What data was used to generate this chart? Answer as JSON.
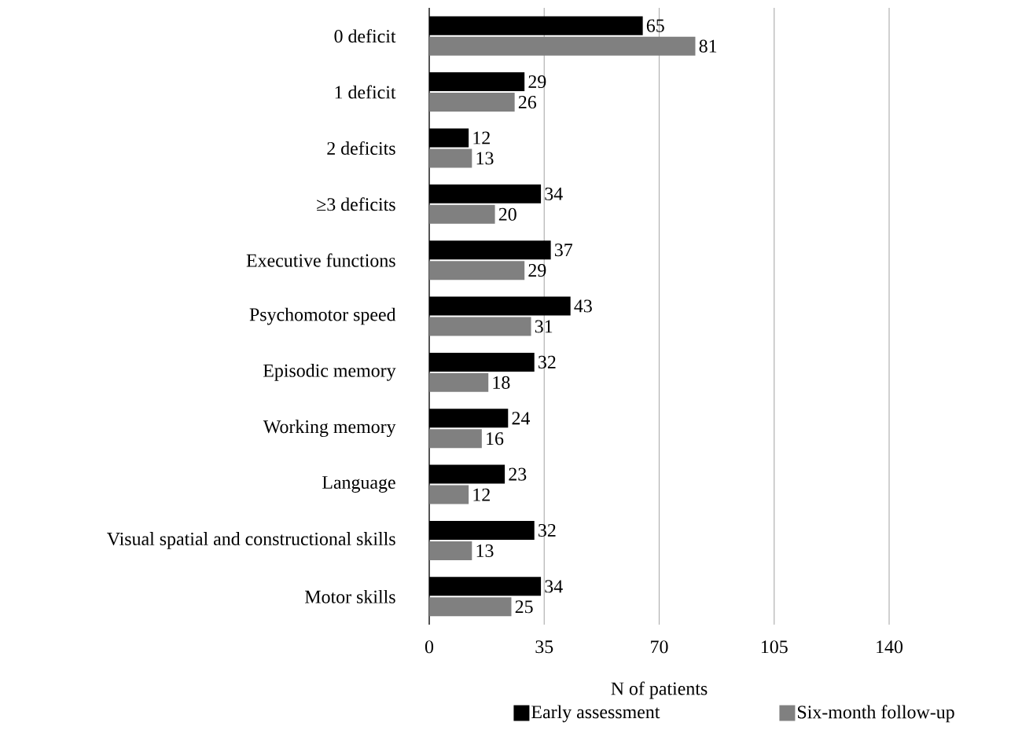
{
  "chart_data": {
    "type": "bar",
    "orientation": "horizontal",
    "categories": [
      "0 deficit",
      "1 deficit",
      "2 deficits",
      "≥3 deficits",
      "Executive functions",
      "Psychomotor speed",
      "Episodic memory",
      "Working memory",
      "Language",
      "Visual spatial and constructional skills",
      "Motor skills"
    ],
    "series": [
      {
        "name": "Early assessment",
        "color": "#000000",
        "values": [
          65,
          29,
          12,
          34,
          37,
          43,
          32,
          24,
          23,
          32,
          34
        ]
      },
      {
        "name": "Six-month follow-up",
        "color": "#808080",
        "values": [
          81,
          26,
          13,
          20,
          29,
          31,
          18,
          16,
          12,
          13,
          25
        ]
      }
    ],
    "xlim": [
      0,
      140
    ],
    "xticks": [
      0,
      35,
      70,
      105,
      140
    ],
    "xlabel": "N of patients",
    "grid": "x",
    "legend": "bottom",
    "data_labels": true
  }
}
